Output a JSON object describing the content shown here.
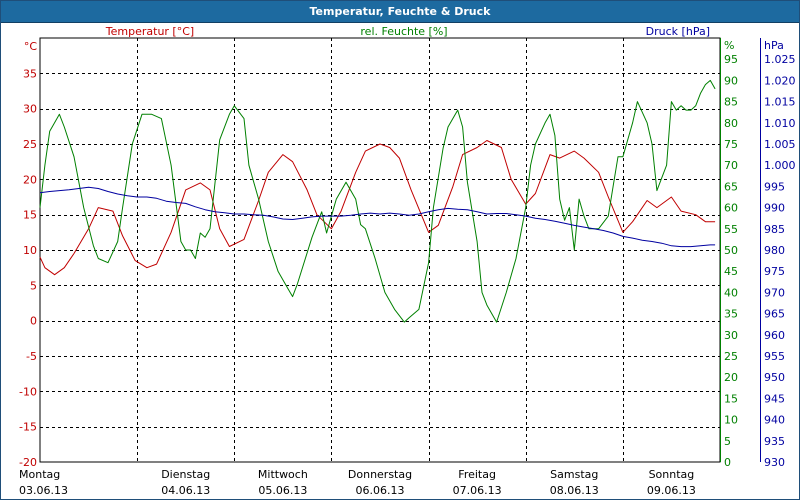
{
  "window": {
    "title": "Temperatur, Feuchte & Druck"
  },
  "chart_data": {
    "type": "line",
    "title": "Temperatur, Feuchte & Druck",
    "grid": true,
    "colors": {
      "temperature": "#c00000",
      "humidity": "#008000",
      "pressure": "#0000a0",
      "grid": "#000000"
    },
    "axes": {
      "temperature": {
        "unit": "°C",
        "ylim": [
          -20,
          40
        ],
        "ticks": [
          -20,
          -15,
          -10,
          -5,
          0,
          5,
          10,
          15,
          20,
          25,
          30,
          35
        ],
        "side": "left"
      },
      "humidity": {
        "unit": "%",
        "ylim": [
          0,
          100
        ],
        "ticks": [
          0,
          5,
          10,
          15,
          20,
          25,
          30,
          35,
          40,
          45,
          50,
          55,
          60,
          65,
          70,
          75,
          80,
          85,
          90,
          95
        ],
        "side": "right"
      },
      "pressure": {
        "unit": "hPa",
        "ylim": [
          930,
          1030
        ],
        "ticks": [
          "930",
          "935",
          "940",
          "945",
          "950",
          "955",
          "960",
          "965",
          "970",
          "975",
          "980",
          "985",
          "990",
          "995",
          "1.000",
          "1.005",
          "1.010",
          "1.015",
          "1.020",
          "1.025"
        ],
        "side": "right"
      }
    },
    "days": [
      {
        "weekday": "Montag",
        "date": "03.06.13"
      },
      {
        "weekday": "Dienstag",
        "date": "04.06.13"
      },
      {
        "weekday": "Mittwoch",
        "date": "05.06.13"
      },
      {
        "weekday": "Donnerstag",
        "date": "06.06.13"
      },
      {
        "weekday": "Freitag",
        "date": "07.06.13"
      },
      {
        "weekday": "Samstag",
        "date": "08.06.13"
      },
      {
        "weekday": "Sonntag",
        "date": "09.06.13"
      }
    ],
    "x_range_days": [
      0,
      7
    ],
    "series": [
      {
        "name": "Temperatur [°C]",
        "axis": "temperature",
        "x": [
          0,
          0.05,
          0.15,
          0.25,
          0.35,
          0.5,
          0.6,
          0.75,
          0.85,
          0.98,
          1.1,
          1.2,
          1.35,
          1.5,
          1.65,
          1.75,
          1.85,
          1.95,
          2.1,
          2.25,
          2.35,
          2.5,
          2.6,
          2.75,
          2.85,
          3.0,
          3.1,
          3.25,
          3.35,
          3.5,
          3.6,
          3.7,
          3.82,
          4.0,
          4.1,
          4.25,
          4.35,
          4.5,
          4.6,
          4.75,
          4.85,
          5.0,
          5.1,
          5.25,
          5.35,
          5.5,
          5.6,
          5.75,
          5.85,
          6.0,
          6.1,
          6.25,
          6.35,
          6.5,
          6.6,
          6.75,
          6.85,
          6.95
        ],
        "values": [
          9,
          7.5,
          6.5,
          7.5,
          9.5,
          13,
          16,
          15.5,
          12,
          8.5,
          7.5,
          8,
          12.5,
          18.5,
          19.5,
          18.5,
          13,
          10.5,
          11.5,
          17,
          21,
          23.5,
          22.5,
          18.5,
          15,
          13,
          15.5,
          21,
          24,
          25,
          24.5,
          23,
          18.5,
          12.5,
          13.5,
          19,
          23.5,
          24.5,
          25.5,
          24.5,
          20,
          16.5,
          18,
          23.5,
          23,
          24,
          23,
          21,
          17.5,
          12.5,
          14,
          17,
          16,
          17.5,
          15.5,
          15,
          14,
          14
        ]
      },
      {
        "name": "rel. Feuchte [%]",
        "axis": "humidity",
        "x": [
          0,
          0.05,
          0.1,
          0.2,
          0.25,
          0.35,
          0.45,
          0.55,
          0.6,
          0.7,
          0.8,
          0.85,
          0.95,
          1.05,
          1.15,
          1.25,
          1.35,
          1.45,
          1.5,
          1.55,
          1.6,
          1.65,
          1.7,
          1.75,
          1.85,
          1.95,
          2.0,
          2.1,
          2.15,
          2.25,
          2.35,
          2.45,
          2.55,
          2.6,
          2.65,
          2.8,
          2.9,
          2.95,
          3.0,
          3.05,
          3.15,
          3.25,
          3.3,
          3.35,
          3.45,
          3.55,
          3.65,
          3.75,
          3.8,
          3.9,
          4.0,
          4.05,
          4.15,
          4.2,
          4.3,
          4.35,
          4.4,
          4.5,
          4.55,
          4.6,
          4.7,
          4.8,
          4.9,
          5.0,
          5.05,
          5.1,
          5.2,
          5.25,
          5.3,
          5.35,
          5.4,
          5.45,
          5.5,
          5.55,
          5.6,
          5.65,
          5.75,
          5.85,
          5.9,
          5.95,
          6.0,
          6.1,
          6.15,
          6.25,
          6.3,
          6.35,
          6.45,
          6.5,
          6.55,
          6.6,
          6.65,
          6.7,
          6.75,
          6.8,
          6.85,
          6.9,
          6.95
        ],
        "values": [
          60,
          70,
          78,
          82,
          79,
          72,
          60,
          51,
          48,
          47,
          52,
          60,
          75,
          82,
          82,
          81,
          70,
          52,
          50,
          50,
          48,
          54,
          53,
          55,
          76,
          82,
          84,
          81,
          70,
          62,
          52,
          45,
          41,
          39,
          42,
          53,
          59,
          54,
          58,
          62,
          66,
          62,
          56,
          55,
          48,
          40,
          36,
          33,
          34,
          36,
          47,
          60,
          74,
          79,
          83,
          79,
          66,
          52,
          40,
          37,
          33,
          40,
          48,
          60,
          70,
          75,
          80,
          82,
          77,
          62,
          57,
          60,
          50,
          62,
          58,
          55,
          55,
          58,
          65,
          72,
          72,
          80,
          85,
          80,
          75,
          64,
          70,
          85,
          83,
          84,
          83,
          83,
          84,
          87,
          89,
          90,
          88
        ]
      },
      {
        "name": "Druck [hPa]",
        "axis": "pressure",
        "x": [
          0,
          0.1,
          0.2,
          0.3,
          0.4,
          0.5,
          0.6,
          0.7,
          0.8,
          0.9,
          1.0,
          1.1,
          1.2,
          1.3,
          1.4,
          1.5,
          1.6,
          1.7,
          1.8,
          1.9,
          2.0,
          2.1,
          2.2,
          2.3,
          2.4,
          2.5,
          2.6,
          2.7,
          2.8,
          2.9,
          3.0,
          3.1,
          3.2,
          3.3,
          3.4,
          3.5,
          3.6,
          3.7,
          3.8,
          3.9,
          4.0,
          4.1,
          4.2,
          4.3,
          4.4,
          4.5,
          4.6,
          4.7,
          4.8,
          4.9,
          5.0,
          5.1,
          5.2,
          5.3,
          5.4,
          5.5,
          5.6,
          5.7,
          5.8,
          5.9,
          6.0,
          6.1,
          6.2,
          6.3,
          6.4,
          6.5,
          6.6,
          6.7,
          6.8,
          6.9,
          6.95
        ],
        "values": [
          993.5,
          993.8,
          994,
          994.2,
          994.5,
          994.8,
          994.5,
          993.8,
          993.2,
          992.8,
          992.5,
          992.5,
          992.2,
          991.5,
          991.2,
          991,
          990.2,
          989.5,
          989,
          988.8,
          988.5,
          988.5,
          988.3,
          988.2,
          987.8,
          987.3,
          987.2,
          987.5,
          987.8,
          988,
          988,
          988,
          988.2,
          988.5,
          988.7,
          988.5,
          988.7,
          988.5,
          988.2,
          988.5,
          989,
          989.5,
          989.8,
          989.6,
          989.5,
          989,
          988.5,
          988.6,
          988.6,
          988.3,
          988,
          987.5,
          987.2,
          986.8,
          986.3,
          985.8,
          985.4,
          985,
          984.6,
          984,
          983.2,
          982.8,
          982.3,
          982,
          981.6,
          981,
          980.8,
          980.8,
          981,
          981.2,
          981.2
        ]
      }
    ]
  }
}
